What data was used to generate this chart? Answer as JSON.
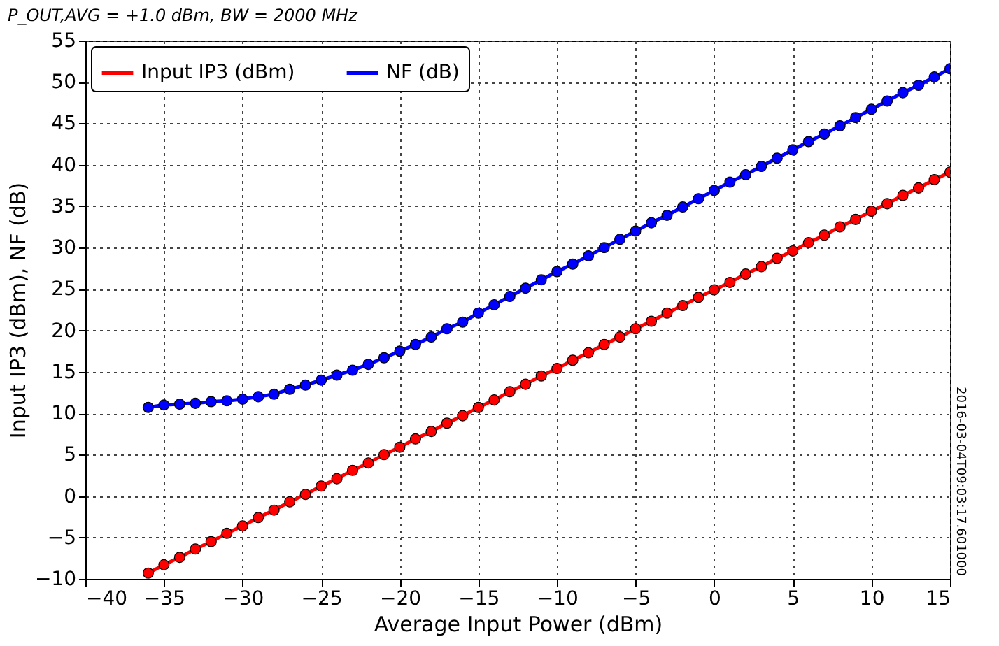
{
  "chart_data": {
    "type": "line",
    "title": "P_OUT,AVG = +1.0 dBm, BW = 2000 MHz",
    "xlabel": "Average Input Power (dBm)",
    "ylabel": "Input IP3 (dBm), NF (dB)",
    "x": [
      -36,
      -35,
      -34,
      -33,
      -32,
      -31,
      -30,
      -29,
      -28,
      -27,
      -26,
      -25,
      -24,
      -23,
      -22,
      -21,
      -20,
      -19,
      -18,
      -17,
      -16,
      -15,
      -14,
      -13,
      -12,
      -11,
      -10,
      -9,
      -8,
      -7,
      -6,
      -5,
      -4,
      -3,
      -2,
      -1,
      0,
      1,
      2,
      3,
      4,
      5,
      6,
      7,
      8,
      9,
      10,
      11,
      12,
      13,
      14,
      15
    ],
    "series": [
      {
        "name": "Input IP3 (dBm)",
        "color": "#ff0000",
        "values": [
          -9.3,
          -8.3,
          -7.4,
          -6.4,
          -5.5,
          -4.5,
          -3.6,
          -2.6,
          -1.7,
          -0.7,
          0.2,
          1.2,
          2.1,
          3.1,
          4.0,
          5.0,
          5.9,
          6.9,
          7.8,
          8.8,
          9.7,
          10.7,
          11.6,
          12.6,
          13.5,
          14.5,
          15.4,
          16.4,
          17.3,
          18.3,
          19.2,
          20.2,
          21.1,
          22.1,
          23.0,
          24.0,
          24.9,
          25.8,
          26.8,
          27.7,
          28.7,
          29.6,
          30.6,
          31.5,
          32.5,
          33.4,
          34.4,
          35.3,
          36.3,
          37.2,
          38.2,
          39.1
        ]
      },
      {
        "name": "NF (dB)",
        "color": "#0000ff",
        "values": [
          10.7,
          11.0,
          11.1,
          11.2,
          11.4,
          11.5,
          11.7,
          12.0,
          12.3,
          12.9,
          13.4,
          14.0,
          14.6,
          15.2,
          15.9,
          16.7,
          17.5,
          18.3,
          19.2,
          20.2,
          21.0,
          22.1,
          23.1,
          24.1,
          25.1,
          26.1,
          27.1,
          28.0,
          29.0,
          30.0,
          31.0,
          32.0,
          33.0,
          33.9,
          34.9,
          35.9,
          36.9,
          37.9,
          38.8,
          39.8,
          40.8,
          41.8,
          42.8,
          43.7,
          44.7,
          45.7,
          46.7,
          47.7,
          48.7,
          49.6,
          50.6,
          51.6
        ]
      }
    ],
    "xlim": [
      -40,
      15
    ],
    "xticks": [
      -40,
      -35,
      -30,
      -25,
      -20,
      -15,
      -10,
      -5,
      0,
      5,
      10,
      15
    ],
    "ylim": [
      -10,
      55
    ],
    "yticks": [
      -10,
      -5,
      0,
      5,
      10,
      15,
      20,
      25,
      30,
      35,
      40,
      45,
      50,
      55
    ],
    "grid": true,
    "legend": "top left",
    "marker": "circle",
    "line_style": "solid",
    "annotations": [
      "2016-03-04T09:03:17.601000"
    ]
  }
}
